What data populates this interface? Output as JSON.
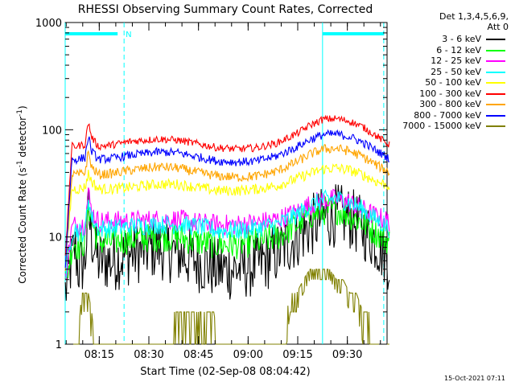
{
  "chart_data": {
    "type": "line",
    "title": "RHESSI Observing Summary Count Rates, Corrected",
    "xlabel": "Start Time (02-Sep-08 08:04:42)",
    "ylabel": "Corrected Count Rate (s",
    "ylabel_sup1": "-1",
    "ylabel_mid": " detector",
    "ylabel_sup2": "-1",
    "ylabel_end": ")",
    "y_scale": "log",
    "ylim": [
      1,
      1000
    ],
    "y_ticks": [
      {
        "value": 1,
        "label": "1"
      },
      {
        "value": 10,
        "label": "10"
      },
      {
        "value": 100,
        "label": "100"
      },
      {
        "value": 1000,
        "label": "1000"
      }
    ],
    "xlim": [
      "08:04:42",
      "09:42:00"
    ],
    "x_ticks": [
      "08:15",
      "08:30",
      "08:45",
      "09:00",
      "09:15",
      "09:30"
    ],
    "legend_title": [
      "Det 1,3,4,5,6,9,",
      "Att 0"
    ],
    "legend_placement": "right",
    "series": [
      {
        "name": "3 - 6 keV",
        "color": "#000000",
        "values": [
          [
            0,
            3
          ],
          [
            2,
            6
          ],
          [
            3,
            8
          ],
          [
            4,
            5
          ],
          [
            6,
            6
          ],
          [
            7,
            17
          ],
          [
            8,
            10
          ],
          [
            10,
            6
          ],
          [
            14,
            6
          ],
          [
            20,
            7
          ],
          [
            28,
            8
          ],
          [
            34,
            7
          ],
          [
            40,
            6
          ],
          [
            46,
            5
          ],
          [
            52,
            5
          ],
          [
            58,
            5.5
          ],
          [
            64,
            7
          ],
          [
            70,
            10
          ],
          [
            74,
            12.5
          ],
          [
            78,
            15
          ],
          [
            82,
            16
          ],
          [
            86,
            15
          ],
          [
            90,
            12
          ],
          [
            94,
            9
          ],
          [
            98,
            6
          ]
        ]
      },
      {
        "name": "6 - 12 keV",
        "color": "#00ff00",
        "values": [
          [
            0,
            3.5
          ],
          [
            2,
            8
          ],
          [
            3,
            9
          ],
          [
            4,
            8
          ],
          [
            6,
            9
          ],
          [
            7,
            20
          ],
          [
            8,
            14
          ],
          [
            10,
            9
          ],
          [
            14,
            9
          ],
          [
            20,
            9.5
          ],
          [
            28,
            10
          ],
          [
            34,
            10
          ],
          [
            40,
            9
          ],
          [
            46,
            8.5
          ],
          [
            52,
            8.5
          ],
          [
            58,
            9
          ],
          [
            64,
            10
          ],
          [
            70,
            13
          ],
          [
            74,
            16
          ],
          [
            78,
            17.5
          ],
          [
            82,
            18
          ],
          [
            86,
            16
          ],
          [
            90,
            13.5
          ],
          [
            94,
            11
          ],
          [
            98,
            9
          ]
        ]
      },
      {
        "name": "12 - 25 keV",
        "color": "#ff00ff",
        "values": [
          [
            0,
            4
          ],
          [
            2,
            12
          ],
          [
            3,
            13
          ],
          [
            4,
            13
          ],
          [
            6,
            13
          ],
          [
            7,
            26
          ],
          [
            8,
            17
          ],
          [
            10,
            14
          ],
          [
            14,
            14
          ],
          [
            20,
            14
          ],
          [
            28,
            14.5
          ],
          [
            34,
            14.5
          ],
          [
            40,
            13.5
          ],
          [
            46,
            13
          ],
          [
            52,
            13
          ],
          [
            58,
            13.5
          ],
          [
            64,
            14.5
          ],
          [
            70,
            17
          ],
          [
            74,
            20
          ],
          [
            78,
            22
          ],
          [
            82,
            22.5
          ],
          [
            86,
            21
          ],
          [
            90,
            18
          ],
          [
            94,
            15.5
          ],
          [
            98,
            14
          ]
        ]
      },
      {
        "name": "25 - 50 keV",
        "color": "#00ffff",
        "values": [
          [
            0,
            4
          ],
          [
            2,
            11
          ],
          [
            3,
            12
          ],
          [
            4,
            11
          ],
          [
            6,
            11
          ],
          [
            7,
            24
          ],
          [
            8,
            15
          ],
          [
            10,
            12
          ],
          [
            14,
            12
          ],
          [
            20,
            12.5
          ],
          [
            28,
            13
          ],
          [
            34,
            13
          ],
          [
            40,
            12.5
          ],
          [
            46,
            11.5
          ],
          [
            52,
            11.5
          ],
          [
            58,
            12
          ],
          [
            64,
            13
          ],
          [
            70,
            16
          ],
          [
            74,
            19.5
          ],
          [
            78,
            22
          ],
          [
            82,
            23
          ],
          [
            86,
            21
          ],
          [
            90,
            18
          ],
          [
            94,
            14.5
          ],
          [
            98,
            12
          ]
        ]
      },
      {
        "name": "50 - 100 keV",
        "color": "#ffff00",
        "values": [
          [
            0,
            5
          ],
          [
            2,
            28
          ],
          [
            3,
            28
          ],
          [
            4,
            28
          ],
          [
            6,
            29
          ],
          [
            7,
            39
          ],
          [
            8,
            33
          ],
          [
            10,
            28
          ],
          [
            14,
            28
          ],
          [
            20,
            29
          ],
          [
            28,
            31
          ],
          [
            34,
            31
          ],
          [
            40,
            29
          ],
          [
            46,
            27
          ],
          [
            52,
            27
          ],
          [
            58,
            28
          ],
          [
            64,
            30
          ],
          [
            70,
            35
          ],
          [
            74,
            39
          ],
          [
            78,
            43
          ],
          [
            82,
            44
          ],
          [
            86,
            42
          ],
          [
            90,
            38
          ],
          [
            94,
            33
          ],
          [
            98,
            30
          ]
        ]
      },
      {
        "name": "100 - 300 keV",
        "color": "#ff0000",
        "values": [
          [
            0,
            6
          ],
          [
            2,
            70
          ],
          [
            3,
            70
          ],
          [
            4,
            71
          ],
          [
            6,
            73
          ],
          [
            7,
            118
          ],
          [
            8,
            85
          ],
          [
            10,
            70
          ],
          [
            14,
            72
          ],
          [
            20,
            78
          ],
          [
            28,
            82
          ],
          [
            34,
            80
          ],
          [
            40,
            74
          ],
          [
            46,
            68
          ],
          [
            52,
            66
          ],
          [
            58,
            68
          ],
          [
            64,
            75
          ],
          [
            70,
            92
          ],
          [
            74,
            110
          ],
          [
            78,
            125
          ],
          [
            82,
            127
          ],
          [
            86,
            120
          ],
          [
            90,
            106
          ],
          [
            94,
            88
          ],
          [
            98,
            72
          ]
        ]
      },
      {
        "name": "300 - 800 keV",
        "color": "#ffa500",
        "values": [
          [
            0,
            5
          ],
          [
            2,
            38
          ],
          [
            3,
            38
          ],
          [
            4,
            38
          ],
          [
            6,
            40
          ],
          [
            7,
            62
          ],
          [
            8,
            45
          ],
          [
            10,
            38
          ],
          [
            14,
            39
          ],
          [
            20,
            42
          ],
          [
            28,
            45
          ],
          [
            34,
            44
          ],
          [
            40,
            40
          ],
          [
            46,
            37
          ],
          [
            52,
            36
          ],
          [
            58,
            37
          ],
          [
            64,
            41
          ],
          [
            70,
            50
          ],
          [
            74,
            59
          ],
          [
            78,
            66
          ],
          [
            82,
            67
          ],
          [
            86,
            63
          ],
          [
            90,
            56
          ],
          [
            94,
            47
          ],
          [
            98,
            40
          ]
        ]
      },
      {
        "name": "800 - 7000 keV",
        "color": "#0000ff",
        "values": [
          [
            0,
            5
          ],
          [
            2,
            53
          ],
          [
            3,
            53
          ],
          [
            4,
            53
          ],
          [
            6,
            55
          ],
          [
            7,
            87
          ],
          [
            8,
            63
          ],
          [
            10,
            53
          ],
          [
            14,
            54
          ],
          [
            20,
            58
          ],
          [
            28,
            62
          ],
          [
            34,
            61
          ],
          [
            40,
            56
          ],
          [
            46,
            51
          ],
          [
            52,
            50
          ],
          [
            58,
            51
          ],
          [
            64,
            57
          ],
          [
            70,
            69
          ],
          [
            74,
            81
          ],
          [
            78,
            90
          ],
          [
            82,
            91
          ],
          [
            86,
            86
          ],
          [
            90,
            76
          ],
          [
            94,
            64
          ],
          [
            98,
            54
          ]
        ]
      },
      {
        "name": "7000 - 15000 keV",
        "color": "#808000",
        "values": [
          [
            0,
            1
          ],
          [
            4,
            1
          ],
          [
            4.5,
            2
          ],
          [
            5,
            3
          ],
          [
            6,
            3
          ],
          [
            7,
            3
          ],
          [
            8,
            2
          ],
          [
            9,
            1
          ],
          [
            16,
            1
          ],
          [
            32,
            1
          ],
          [
            33,
            2
          ],
          [
            45,
            2
          ],
          [
            46,
            1
          ],
          [
            66,
            1
          ],
          [
            67,
            2
          ],
          [
            68,
            3
          ],
          [
            70,
            3
          ],
          [
            72,
            4
          ],
          [
            74,
            5
          ],
          [
            76,
            5
          ],
          [
            78,
            5
          ],
          [
            80,
            5
          ],
          [
            82,
            4
          ],
          [
            84,
            4
          ],
          [
            86,
            3
          ],
          [
            88,
            3
          ],
          [
            90,
            2
          ],
          [
            92,
            2
          ],
          [
            93,
            1
          ],
          [
            98,
            1
          ]
        ]
      }
    ],
    "night_markers": [
      {
        "start": "08:04:42",
        "end": "08:22:30",
        "label": "N",
        "color": "#00ffff"
      },
      {
        "start": "09:22:30",
        "end": "09:41:00",
        "label": "",
        "color": "#00ffff"
      }
    ],
    "timestamp": "15-Oct-2021 07:11"
  }
}
